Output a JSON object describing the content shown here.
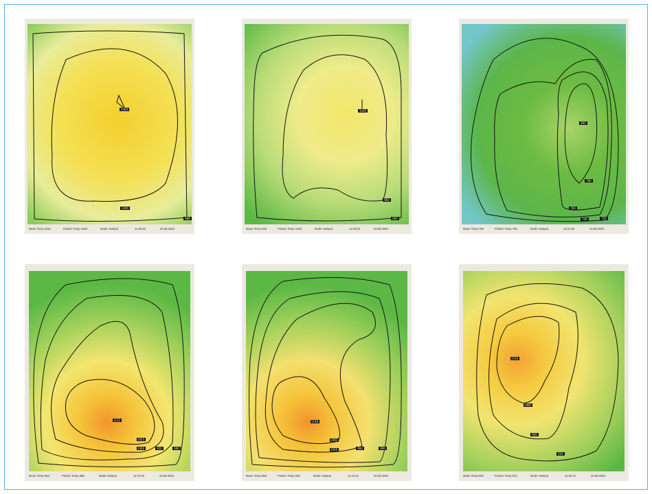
{
  "panels": [
    {
      "labels": [
        "1060",
        "1000",
        "980"
      ],
      "status": {
        "mean_temp": "Mean Temp 1051",
        "pointer_temp": "Pointer Temp 1060",
        "mode": "Mode Hotspot",
        "time": "11:30:52",
        "date": "20.08.2003"
      }
    },
    {
      "labels": [
        "1020",
        "960",
        "900"
      ],
      "status": {
        "mean_temp": "Mean Temp 935",
        "pointer_temp": "Pointer Temp 1026",
        "mode": "Mode Hotspot",
        "time": "11:53:02",
        "date": "20.08.2003"
      }
    },
    {
      "labels": [
        "800",
        "780",
        "760",
        "740",
        "720"
      ],
      "status": {
        "mean_temp": "Mean Temp 755",
        "pointer_temp": "Pointer Temp 753",
        "mode": "Mode Hotspot",
        "time": "11:21:25",
        "date": "20.08.2003"
      }
    },
    {
      "labels": [
        "1133",
        "1025",
        "1000",
        "950",
        "900"
      ],
      "status": {
        "mean_temp": "Mean Temp 964",
        "pointer_temp": "Pointer Temp 985",
        "mode": "Mode Hotspot",
        "time": "11:37:20",
        "date": "20.08.2003"
      }
    },
    {
      "labels": [
        "1148",
        "1090",
        "1020",
        "960",
        "900"
      ],
      "status": {
        "mean_temp": "Mean Temp 958",
        "pointer_temp": "Pointer Temp 945",
        "mode": "Mode Hotspot",
        "time": "11:44:31",
        "date": "20.08.2003"
      }
    },
    {
      "labels": [
        "1150",
        "1060",
        "960",
        "920"
      ],
      "status": {
        "mean_temp": "Mean Temp 994",
        "pointer_temp": "Pointer Temp 912",
        "mode": "Mode Hotspot",
        "time": "11:53:12",
        "date": "20.08.2003"
      }
    }
  ],
  "colors": {
    "frame_border": "#49b8dd",
    "panel_bg": "#ece9e1",
    "cool": "#6cbf4a",
    "cold": "#6cc6c8",
    "warm": "#f5d83a",
    "hot": "#f2a232"
  }
}
